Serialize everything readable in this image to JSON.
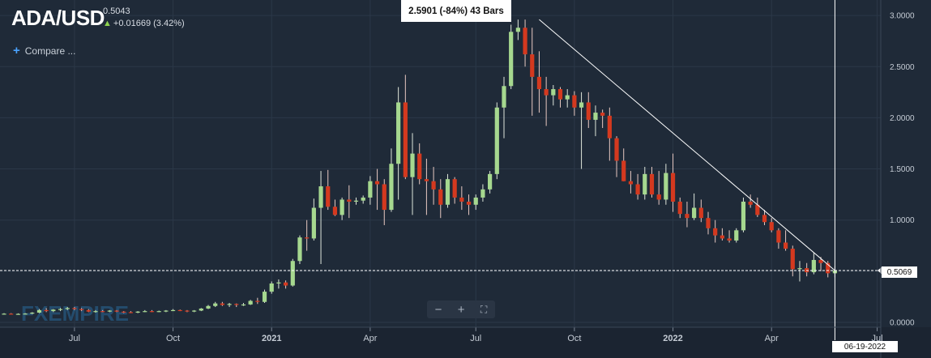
{
  "header": {
    "symbol": "ADA/USD",
    "price": "0.5043",
    "change": "+0.01669 (3.42%)",
    "compare_label": "Compare ..."
  },
  "measure_label": "2.5901 (-84%) 43 Bars",
  "last_price_label": "0.5069",
  "crosshair_date_label": "06-19-2022",
  "watermark": "FXEMPIRE",
  "colors": {
    "up": "#a6d88f",
    "down": "#d4391f",
    "background": "#1f2a38",
    "grid": "#2b3848"
  },
  "chart_data": {
    "type": "candlestick",
    "title": "ADA/USD",
    "interval": "weekly",
    "ylim": [
      0,
      3.1
    ],
    "y_ticks": [
      "0.0000",
      "0.5000",
      "1.0000",
      "1.5000",
      "2.0000",
      "2.5000",
      "3.0000"
    ],
    "x_tick_labels": [
      "Jul",
      "Oct",
      "2021",
      "Apr",
      "Jul",
      "Oct",
      "2022",
      "Apr",
      "Jul"
    ],
    "last_price": 0.5069,
    "trendline": {
      "from": 2.96,
      "to": 0.5069,
      "label": "2.5901 (-84%) 43 Bars"
    },
    "candles": [
      [
        0.08,
        0.09,
        0.075,
        0.085
      ],
      [
        0.085,
        0.09,
        0.078,
        0.08
      ],
      [
        0.08,
        0.088,
        0.075,
        0.083
      ],
      [
        0.083,
        0.09,
        0.078,
        0.086
      ],
      [
        0.086,
        0.1,
        0.08,
        0.095
      ],
      [
        0.095,
        0.13,
        0.09,
        0.12
      ],
      [
        0.12,
        0.14,
        0.1,
        0.11
      ],
      [
        0.11,
        0.13,
        0.1,
        0.125
      ],
      [
        0.125,
        0.14,
        0.11,
        0.13
      ],
      [
        0.13,
        0.15,
        0.12,
        0.14
      ],
      [
        0.14,
        0.15,
        0.12,
        0.13
      ],
      [
        0.13,
        0.14,
        0.11,
        0.12
      ],
      [
        0.12,
        0.13,
        0.1,
        0.105
      ],
      [
        0.105,
        0.12,
        0.095,
        0.11
      ],
      [
        0.11,
        0.12,
        0.1,
        0.105
      ],
      [
        0.105,
        0.12,
        0.1,
        0.115
      ],
      [
        0.115,
        0.12,
        0.1,
        0.105
      ],
      [
        0.105,
        0.11,
        0.09,
        0.1
      ],
      [
        0.1,
        0.11,
        0.09,
        0.095
      ],
      [
        0.095,
        0.11,
        0.09,
        0.105
      ],
      [
        0.105,
        0.12,
        0.1,
        0.11
      ],
      [
        0.11,
        0.12,
        0.1,
        0.105
      ],
      [
        0.105,
        0.115,
        0.1,
        0.11
      ],
      [
        0.11,
        0.12,
        0.1,
        0.115
      ],
      [
        0.115,
        0.13,
        0.11,
        0.12
      ],
      [
        0.12,
        0.125,
        0.11,
        0.115
      ],
      [
        0.115,
        0.12,
        0.1,
        0.11
      ],
      [
        0.11,
        0.12,
        0.1,
        0.115
      ],
      [
        0.115,
        0.14,
        0.11,
        0.135
      ],
      [
        0.135,
        0.17,
        0.13,
        0.16
      ],
      [
        0.16,
        0.2,
        0.15,
        0.185
      ],
      [
        0.185,
        0.2,
        0.16,
        0.17
      ],
      [
        0.17,
        0.19,
        0.15,
        0.18
      ],
      [
        0.18,
        0.185,
        0.15,
        0.17
      ],
      [
        0.17,
        0.19,
        0.16,
        0.175
      ],
      [
        0.175,
        0.22,
        0.17,
        0.21
      ],
      [
        0.21,
        0.24,
        0.18,
        0.2
      ],
      [
        0.2,
        0.32,
        0.19,
        0.3
      ],
      [
        0.3,
        0.4,
        0.28,
        0.38
      ],
      [
        0.38,
        0.42,
        0.33,
        0.39
      ],
      [
        0.39,
        0.41,
        0.33,
        0.36
      ],
      [
        0.36,
        0.62,
        0.35,
        0.6
      ],
      [
        0.6,
        0.85,
        0.57,
        0.83
      ],
      [
        0.83,
        1.0,
        0.7,
        0.82
      ],
      [
        0.82,
        1.21,
        0.8,
        1.12
      ],
      [
        1.12,
        1.48,
        0.57,
        1.33
      ],
      [
        1.33,
        1.49,
        1.1,
        1.13
      ],
      [
        1.13,
        1.2,
        1.04,
        1.05
      ],
      [
        1.05,
        1.22,
        1.0,
        1.2
      ],
      [
        1.2,
        1.34,
        1.02,
        1.18
      ],
      [
        1.18,
        1.22,
        1.15,
        1.19
      ],
      [
        1.19,
        1.24,
        1.16,
        1.22
      ],
      [
        1.22,
        1.43,
        1.15,
        1.38
      ],
      [
        1.38,
        1.5,
        1.1,
        1.35
      ],
      [
        1.35,
        1.4,
        0.95,
        1.1
      ],
      [
        1.1,
        1.7,
        1.08,
        1.55
      ],
      [
        1.55,
        2.3,
        1.2,
        2.15
      ],
      [
        2.15,
        2.42,
        1.4,
        1.42
      ],
      [
        1.42,
        1.85,
        1.05,
        1.65
      ],
      [
        1.65,
        1.75,
        1.35,
        1.4
      ],
      [
        1.4,
        1.6,
        1.05,
        1.38
      ],
      [
        1.38,
        1.52,
        1.15,
        1.3
      ],
      [
        1.3,
        1.4,
        1.02,
        1.15
      ],
      [
        1.15,
        1.45,
        1.12,
        1.4
      ],
      [
        1.4,
        1.42,
        1.16,
        1.22
      ],
      [
        1.22,
        1.33,
        1.1,
        1.18
      ],
      [
        1.18,
        1.25,
        1.05,
        1.15
      ],
      [
        1.15,
        1.25,
        1.1,
        1.22
      ],
      [
        1.22,
        1.35,
        1.18,
        1.3
      ],
      [
        1.3,
        1.48,
        1.26,
        1.45
      ],
      [
        1.45,
        2.15,
        1.4,
        2.1
      ],
      [
        2.1,
        2.4,
        1.8,
        2.31
      ],
      [
        2.31,
        2.91,
        2.28,
        2.84
      ],
      [
        2.84,
        2.96,
        2.76,
        2.88
      ],
      [
        2.88,
        2.96,
        2.5,
        2.62
      ],
      [
        2.62,
        2.88,
        2.02,
        2.4
      ],
      [
        2.4,
        2.65,
        2.05,
        2.28
      ],
      [
        2.28,
        2.4,
        1.92,
        2.22
      ],
      [
        2.22,
        2.32,
        2.12,
        2.28
      ],
      [
        2.28,
        2.3,
        2.1,
        2.18
      ],
      [
        2.18,
        2.28,
        2.1,
        2.22
      ],
      [
        2.22,
        2.26,
        2.02,
        2.1
      ],
      [
        2.1,
        2.25,
        1.5,
        2.15
      ],
      [
        2.15,
        2.25,
        1.9,
        1.98
      ],
      [
        1.98,
        2.12,
        1.82,
        2.05
      ],
      [
        2.05,
        2.08,
        1.9,
        2.02
      ],
      [
        2.02,
        2.1,
        1.58,
        1.8
      ],
      [
        1.8,
        1.82,
        1.42,
        1.58
      ],
      [
        1.58,
        1.7,
        1.38,
        1.38
      ],
      [
        1.38,
        1.48,
        1.26,
        1.35
      ],
      [
        1.35,
        1.45,
        1.2,
        1.25
      ],
      [
        1.25,
        1.52,
        1.2,
        1.45
      ],
      [
        1.45,
        1.52,
        1.22,
        1.25
      ],
      [
        1.25,
        1.48,
        1.15,
        1.2
      ],
      [
        1.2,
        1.55,
        1.15,
        1.46
      ],
      [
        1.46,
        1.65,
        1.08,
        1.18
      ],
      [
        1.18,
        1.22,
        1.02,
        1.06
      ],
      [
        1.06,
        1.18,
        0.93,
        1.02
      ],
      [
        1.02,
        1.26,
        1.0,
        1.12
      ],
      [
        1.12,
        1.2,
        0.98,
        1.02
      ],
      [
        1.02,
        1.08,
        0.86,
        0.92
      ],
      [
        0.92,
        1.0,
        0.78,
        0.85
      ],
      [
        0.85,
        0.92,
        0.8,
        0.82
      ],
      [
        0.82,
        0.9,
        0.78,
        0.8
      ],
      [
        0.8,
        0.92,
        0.78,
        0.9
      ],
      [
        0.9,
        1.22,
        0.88,
        1.18
      ],
      [
        1.18,
        1.25,
        1.12,
        1.15
      ],
      [
        1.15,
        1.22,
        1.03,
        1.05
      ],
      [
        1.05,
        1.1,
        0.95,
        0.98
      ],
      [
        0.98,
        1.02,
        0.88,
        0.9
      ],
      [
        0.9,
        0.92,
        0.72,
        0.78
      ],
      [
        0.78,
        0.9,
        0.7,
        0.72
      ],
      [
        0.72,
        0.75,
        0.45,
        0.52
      ],
      [
        0.52,
        0.6,
        0.4,
        0.53
      ],
      [
        0.53,
        0.58,
        0.45,
        0.49
      ],
      [
        0.49,
        0.68,
        0.47,
        0.61
      ],
      [
        0.61,
        0.64,
        0.5,
        0.58
      ],
      [
        0.58,
        0.6,
        0.44,
        0.48
      ],
      [
        0.48,
        0.55,
        0.44,
        0.5069
      ]
    ]
  }
}
